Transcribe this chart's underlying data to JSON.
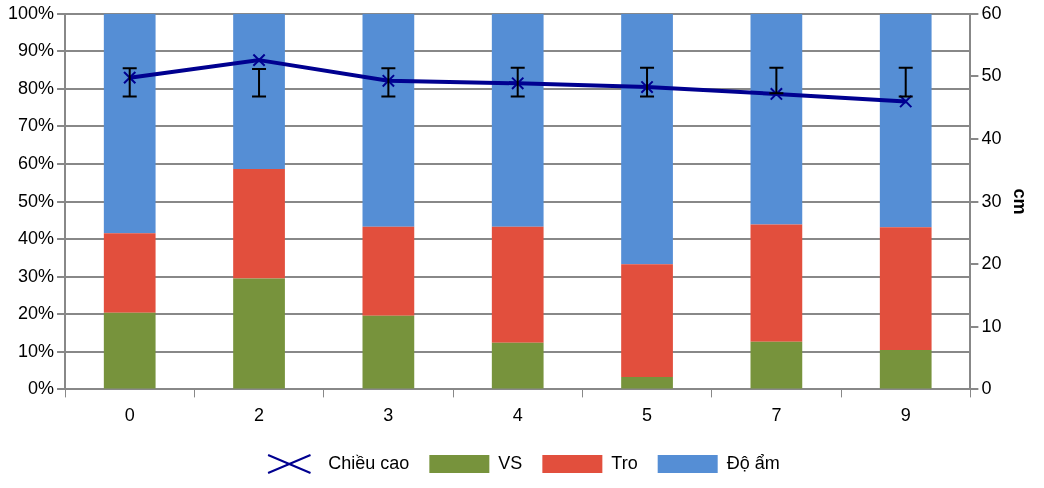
{
  "chart_data": {
    "type": "bar",
    "stacked": true,
    "ylabel": null,
    "y2label": "cm",
    "categories": [
      "0",
      "2",
      "3",
      "4",
      "5",
      "7",
      "9"
    ],
    "series": [
      {
        "name": "VS",
        "color": "#77933c",
        "values": [
          20.4,
          29.5,
          19.6,
          12.4,
          3.3,
          12.7,
          10.5
        ]
      },
      {
        "name": "Tro",
        "color": "#e24f3d",
        "values": [
          21.2,
          29.2,
          23.7,
          30.9,
          30.0,
          31.2,
          32.7
        ]
      },
      {
        "name": "Độ ẩm",
        "color": "#558ed5",
        "values": [
          58.4,
          41.3,
          56.7,
          56.7,
          66.7,
          56.1,
          56.8
        ]
      },
      {
        "name": "Chiều cao",
        "type": "line",
        "axis": "y2",
        "color": "#000090",
        "values": [
          49.8,
          52.6,
          49.3,
          48.9,
          48.3,
          47.2,
          46.0
        ],
        "errors": [
          [
            46.8,
            51.3
          ],
          [
            46.8,
            51.2
          ],
          [
            46.8,
            51.3
          ],
          [
            46.8,
            51.4
          ],
          [
            46.8,
            51.4
          ],
          [
            47.3,
            51.4
          ],
          [
            46.8,
            51.4
          ]
        ]
      }
    ],
    "ylim": [
      0,
      100
    ],
    "yticks": [
      {
        "value": 0,
        "label": "0%"
      },
      {
        "value": 10,
        "label": "10%"
      },
      {
        "value": 20,
        "label": "20%"
      },
      {
        "value": 30,
        "label": "30%"
      },
      {
        "value": 40,
        "label": "40%"
      },
      {
        "value": 50,
        "label": "50%"
      },
      {
        "value": 60,
        "label": "60%"
      },
      {
        "value": 70,
        "label": "70%"
      },
      {
        "value": 80,
        "label": "80%"
      },
      {
        "value": 90,
        "label": "90%"
      },
      {
        "value": 100,
        "label": "100%"
      }
    ],
    "y2lim": [
      0,
      60
    ],
    "y2ticks": [
      0,
      10,
      20,
      30,
      40,
      50,
      60
    ],
    "grid": "y",
    "legend": "bottom",
    "marker": "cross",
    "line_style": "solid"
  }
}
